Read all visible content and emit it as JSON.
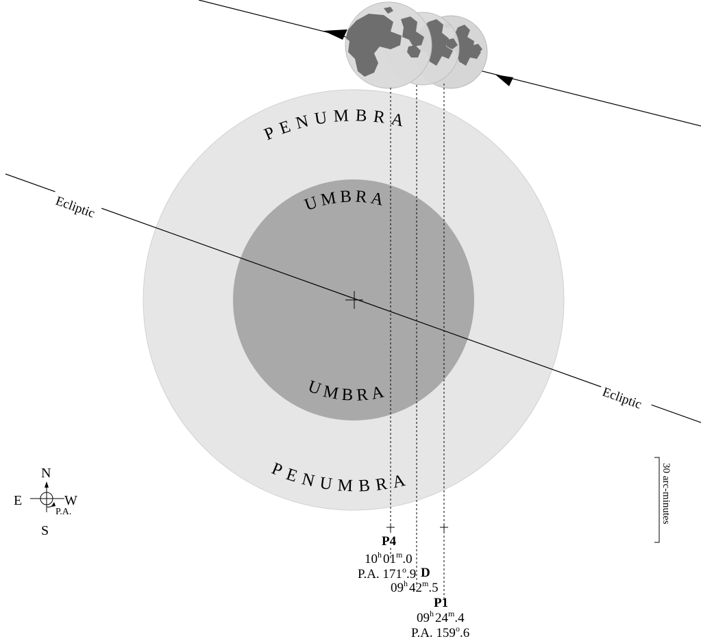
{
  "colors": {
    "background": "#ffffff",
    "penumbra": "#e6e6e6",
    "umbra": "#a9a9a9",
    "moon_disk": "#d6d6d6",
    "moon_maria": "#707070",
    "line": "#000000"
  },
  "labels": {
    "penumbra_top": "PENUMBRA",
    "penumbra_bottom": "PENUMBRA",
    "umbra_top": "UMBRA",
    "umbra_bottom": "UMBRA",
    "ecliptic_left": "Ecliptic",
    "ecliptic_right": "Ecliptic"
  },
  "compass": {
    "north": "N",
    "south": "S",
    "east": "E",
    "west": "W",
    "pa": "P.A."
  },
  "scale": {
    "label": "30 arc-minutes"
  },
  "contacts": {
    "p4": {
      "name": "P4",
      "time_h": "10",
      "time_m": "01",
      "time_frac": "0",
      "pa_prefix": "P.A. 171",
      "pa_frac": "9"
    },
    "d": {
      "name": "D",
      "time_h": "09",
      "time_m": "42",
      "time_frac": "5"
    },
    "p1": {
      "name": "P1",
      "time_h": "09",
      "time_m": "24",
      "time_frac": "4",
      "pa_prefix": "P.A. 159",
      "pa_frac": "6"
    }
  },
  "superscripts": {
    "hour": "h",
    "minute": "m",
    "degree": "o"
  }
}
